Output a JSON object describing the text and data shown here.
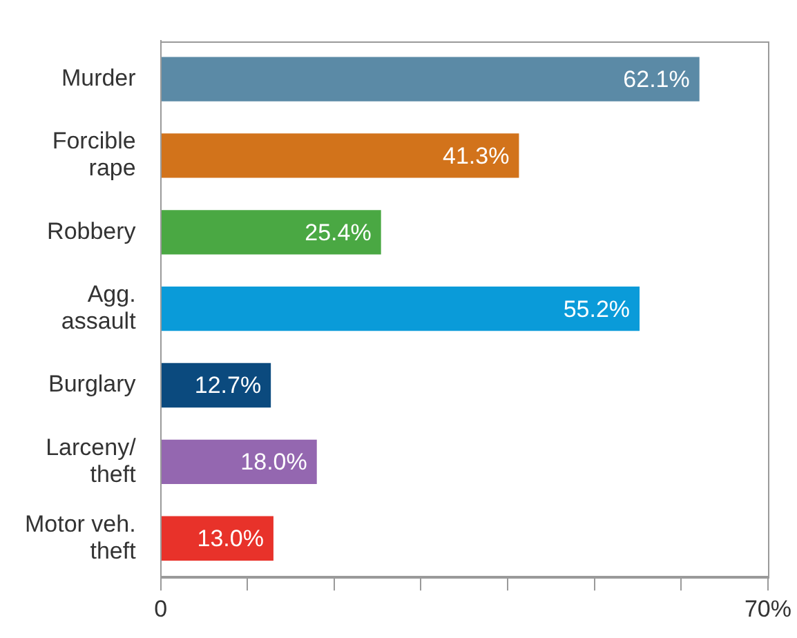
{
  "chart_data": {
    "type": "bar",
    "orientation": "horizontal",
    "categories": [
      "Murder",
      "Forcible rape",
      "Robbery",
      "Agg. assault",
      "Burglary",
      "Larceny/theft",
      "Motor veh. theft"
    ],
    "values": [
      62.1,
      41.3,
      25.4,
      55.2,
      12.7,
      18.0,
      13.0
    ],
    "colors": [
      "#5b8aa6",
      "#d2731b",
      "#4aa843",
      "#0a9bd9",
      "#0b4a7e",
      "#9467b0",
      "#e8322a"
    ],
    "value_labels": [
      "62.1%",
      "41.3%",
      "25.4%",
      "55.2%",
      "12.7%",
      "18.0%",
      "13.0%"
    ],
    "xlim": [
      0,
      70
    ],
    "xticks": [
      0,
      {
        "value": 10,
        "label": null
      },
      {
        "value": 20,
        "label": null
      },
      {
        "value": 30,
        "label": null
      },
      {
        "value": 40,
        "label": null
      },
      {
        "value": 50,
        "label": null
      },
      {
        "value": 60,
        "label": null
      },
      {
        "value": 70,
        "label": "70%"
      }
    ],
    "grid": false,
    "legend": false
  }
}
